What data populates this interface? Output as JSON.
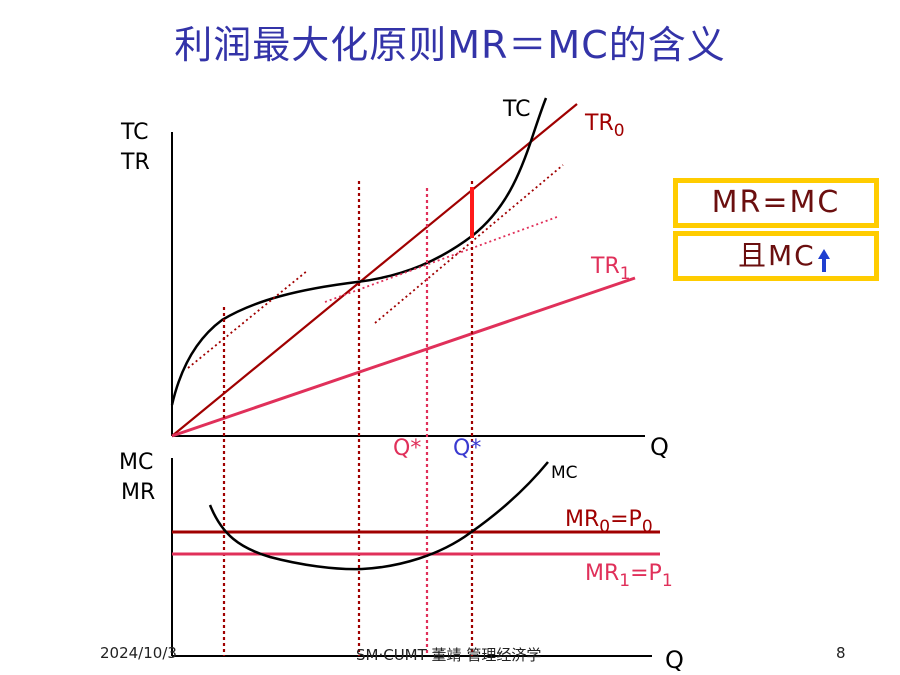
{
  "title": "利润最大化原则MR＝MC的含义",
  "axes": {
    "upper_y_label_1": "TC",
    "upper_y_label_2": "TR",
    "upper_x_label": "Q",
    "lower_y_label_1": "MC",
    "lower_y_label_2": "MR",
    "lower_x_label": "Q"
  },
  "curves": {
    "tc": "TC",
    "tr0_main": "TR",
    "tr0_sub": "0",
    "tr1_main": "TR",
    "tr1_sub": "1",
    "mc": "MC",
    "mr0_a": "MR",
    "mr0_sub1": "0",
    "mr0_b": "=P",
    "mr0_sub2": "0",
    "mr1_a": "MR",
    "mr1_sub1": "1",
    "mr1_b": "=P",
    "mr1_sub2": "1"
  },
  "markers": {
    "q_star_1": "Q*",
    "q_star_2": "Q*"
  },
  "callout": {
    "line1": "MR=MC",
    "line2_prefix": "且MC"
  },
  "footer": {
    "date": "2024/10/3",
    "center": "SM·CUMT  董靖   管理经济学",
    "page": "8"
  },
  "colors": {
    "title": "#3333a8",
    "dark_red": "#a00000",
    "pink": "#e0305a",
    "blue": "#3a3ad0",
    "highlight_box": "#ffcc00",
    "arrow_blue": "#1f3fd0"
  }
}
